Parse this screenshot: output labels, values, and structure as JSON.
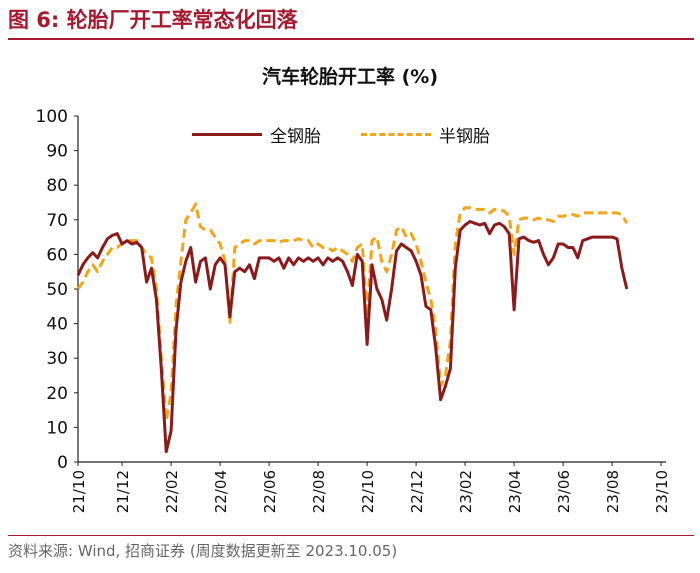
{
  "figure_title": "图 6:  轮胎厂开工率常态化回落",
  "source": "资料来源: Wind, 招商证券 (周度数据更新至 2023.10.05)",
  "colors": {
    "all_steel": "#8b1a1a",
    "semi_steel": "#f2a516",
    "accent": "#a6192e"
  },
  "chart_data": {
    "type": "line",
    "title": "汽车轮胎开工率 (%)",
    "ylim": [
      0,
      100
    ],
    "yticks": [
      0,
      10,
      20,
      30,
      40,
      50,
      60,
      70,
      80,
      90,
      100
    ],
    "xlim": [
      0,
      120
    ],
    "xticks": [
      {
        "label": "21/10",
        "x": 0
      },
      {
        "label": "21/12",
        "x": 9
      },
      {
        "label": "22/02",
        "x": 19
      },
      {
        "label": "22/04",
        "x": 29
      },
      {
        "label": "22/06",
        "x": 39
      },
      {
        "label": "22/08",
        "x": 49
      },
      {
        "label": "22/10",
        "x": 59
      },
      {
        "label": "22/12",
        "x": 69
      },
      {
        "label": "23/02",
        "x": 79
      },
      {
        "label": "23/04",
        "x": 89
      },
      {
        "label": "23/06",
        "x": 99
      },
      {
        "label": "23/08",
        "x": 109
      },
      {
        "label": "23/10",
        "x": 119
      }
    ],
    "series": [
      {
        "name": "全钢胎",
        "style": "solid",
        "points": [
          [
            0,
            54
          ],
          [
            1,
            57
          ],
          [
            2,
            59
          ],
          [
            3,
            60.5
          ],
          [
            4,
            59
          ],
          [
            5,
            62
          ],
          [
            6,
            64.5
          ],
          [
            7,
            65.5
          ],
          [
            8,
            66
          ],
          [
            9,
            63
          ],
          [
            10,
            64
          ],
          [
            11,
            63
          ],
          [
            12,
            63.5
          ],
          [
            13,
            62
          ],
          [
            14,
            52
          ],
          [
            15,
            56
          ],
          [
            16,
            47
          ],
          [
            17,
            27
          ],
          [
            18,
            3
          ],
          [
            19,
            9
          ],
          [
            20,
            38
          ],
          [
            21,
            52
          ],
          [
            22,
            58
          ],
          [
            23,
            62
          ],
          [
            24,
            52
          ],
          [
            25,
            58
          ],
          [
            26,
            59
          ],
          [
            27,
            50
          ],
          [
            28,
            57
          ],
          [
            29,
            59
          ],
          [
            30,
            57
          ],
          [
            31,
            42
          ],
          [
            32,
            55
          ],
          [
            33,
            56
          ],
          [
            34,
            55
          ],
          [
            35,
            57
          ],
          [
            36,
            53
          ],
          [
            37,
            59
          ],
          [
            38,
            59
          ],
          [
            39,
            59
          ],
          [
            40,
            58
          ],
          [
            41,
            59
          ],
          [
            42,
            56
          ],
          [
            43,
            59
          ],
          [
            44,
            57
          ],
          [
            45,
            59
          ],
          [
            46,
            58
          ],
          [
            47,
            59
          ],
          [
            48,
            58
          ],
          [
            49,
            59
          ],
          [
            50,
            57
          ],
          [
            51,
            59
          ],
          [
            52,
            58
          ],
          [
            53,
            59
          ],
          [
            54,
            58
          ],
          [
            55,
            55
          ],
          [
            56,
            51
          ],
          [
            57,
            60
          ],
          [
            58,
            58
          ],
          [
            59,
            34
          ],
          [
            60,
            57
          ],
          [
            61,
            50
          ],
          [
            62,
            47
          ],
          [
            63,
            41
          ],
          [
            64,
            50
          ],
          [
            65,
            61
          ],
          [
            66,
            63
          ],
          [
            67,
            62
          ],
          [
            68,
            61
          ],
          [
            69,
            58
          ],
          [
            70,
            54
          ],
          [
            71,
            45
          ],
          [
            72,
            44
          ],
          [
            73,
            33
          ],
          [
            74,
            18
          ],
          [
            75,
            22
          ],
          [
            76,
            27
          ],
          [
            77,
            56
          ],
          [
            78,
            67
          ],
          [
            79,
            68.5
          ],
          [
            80,
            69.5
          ],
          [
            81,
            69
          ],
          [
            82,
            68.5
          ],
          [
            83,
            69
          ],
          [
            84,
            66
          ],
          [
            85,
            68.5
          ],
          [
            86,
            69
          ],
          [
            87,
            68
          ],
          [
            88,
            66
          ],
          [
            89,
            44
          ],
          [
            90,
            64.5
          ],
          [
            91,
            65
          ],
          [
            92,
            64
          ],
          [
            93,
            63.5
          ],
          [
            94,
            64
          ],
          [
            95,
            60
          ],
          [
            96,
            57
          ],
          [
            97,
            59
          ],
          [
            98,
            63
          ],
          [
            99,
            63
          ],
          [
            100,
            62
          ],
          [
            101,
            62
          ],
          [
            102,
            59
          ],
          [
            103,
            64
          ],
          [
            104,
            64.5
          ],
          [
            105,
            65
          ],
          [
            106,
            65
          ],
          [
            107,
            65
          ],
          [
            108,
            65
          ],
          [
            109,
            65
          ],
          [
            110,
            64.5
          ],
          [
            111,
            56
          ],
          [
            112,
            50
          ]
        ]
      },
      {
        "name": "半钢胎",
        "style": "dashed",
        "points": [
          [
            0,
            50
          ],
          [
            1,
            52
          ],
          [
            2,
            55
          ],
          [
            3,
            57
          ],
          [
            4,
            55
          ],
          [
            5,
            58
          ],
          [
            6,
            60
          ],
          [
            7,
            62
          ],
          [
            8,
            62
          ],
          [
            9,
            63
          ],
          [
            10,
            64
          ],
          [
            11,
            64
          ],
          [
            12,
            64
          ],
          [
            13,
            62
          ],
          [
            14,
            60
          ],
          [
            15,
            59
          ],
          [
            16,
            50
          ],
          [
            17,
            30
          ],
          [
            18,
            12
          ],
          [
            19,
            20
          ],
          [
            20,
            45
          ],
          [
            21,
            58
          ],
          [
            22,
            70
          ],
          [
            23,
            72
          ],
          [
            24,
            74.5
          ],
          [
            25,
            68
          ],
          [
            26,
            67
          ],
          [
            27,
            67
          ],
          [
            28,
            65
          ],
          [
            29,
            63
          ],
          [
            30,
            58
          ],
          [
            31,
            40
          ],
          [
            32,
            62
          ],
          [
            33,
            63
          ],
          [
            34,
            64
          ],
          [
            35,
            64
          ],
          [
            36,
            63
          ],
          [
            37,
            64
          ],
          [
            38,
            64
          ],
          [
            39,
            64
          ],
          [
            40,
            64
          ],
          [
            41,
            63.5
          ],
          [
            42,
            64
          ],
          [
            43,
            64
          ],
          [
            44,
            64
          ],
          [
            45,
            64.5
          ],
          [
            46,
            64
          ],
          [
            47,
            64
          ],
          [
            48,
            62
          ],
          [
            49,
            63
          ],
          [
            50,
            62
          ],
          [
            51,
            62
          ],
          [
            52,
            61
          ],
          [
            53,
            62
          ],
          [
            54,
            61
          ],
          [
            55,
            60
          ],
          [
            56,
            58
          ],
          [
            57,
            62
          ],
          [
            58,
            63
          ],
          [
            59,
            42
          ],
          [
            60,
            64
          ],
          [
            61,
            65
          ],
          [
            62,
            58
          ],
          [
            63,
            55
          ],
          [
            64,
            60
          ],
          [
            65,
            67
          ],
          [
            66,
            68
          ],
          [
            67,
            65
          ],
          [
            68,
            66
          ],
          [
            69,
            63
          ],
          [
            70,
            58
          ],
          [
            71,
            52
          ],
          [
            72,
            47
          ],
          [
            73,
            38
          ],
          [
            74,
            22
          ],
          [
            75,
            25
          ],
          [
            76,
            35
          ],
          [
            77,
            63
          ],
          [
            78,
            72
          ],
          [
            79,
            73.5
          ],
          [
            80,
            73.5
          ],
          [
            81,
            73
          ],
          [
            82,
            73
          ],
          [
            83,
            73
          ],
          [
            84,
            72
          ],
          [
            85,
            73
          ],
          [
            86,
            73
          ],
          [
            87,
            72.5
          ],
          [
            88,
            71
          ],
          [
            89,
            60
          ],
          [
            90,
            70
          ],
          [
            91,
            70.5
          ],
          [
            92,
            70.5
          ],
          [
            93,
            70
          ],
          [
            94,
            70.5
          ],
          [
            95,
            70
          ],
          [
            96,
            70
          ],
          [
            97,
            69.5
          ],
          [
            98,
            71
          ],
          [
            99,
            71
          ],
          [
            100,
            71.5
          ],
          [
            101,
            71.5
          ],
          [
            102,
            71
          ],
          [
            103,
            72
          ],
          [
            104,
            72
          ],
          [
            105,
            72
          ],
          [
            106,
            72
          ],
          [
            107,
            72
          ],
          [
            108,
            72
          ],
          [
            109,
            72
          ],
          [
            110,
            72
          ],
          [
            111,
            71.5
          ],
          [
            112,
            69
          ]
        ]
      }
    ]
  }
}
